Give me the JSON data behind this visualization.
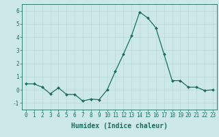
{
  "x": [
    0,
    1,
    2,
    3,
    4,
    5,
    6,
    7,
    8,
    9,
    10,
    11,
    12,
    13,
    14,
    15,
    16,
    17,
    18,
    19,
    20,
    21,
    22,
    23
  ],
  "y": [
    0.45,
    0.45,
    0.2,
    -0.3,
    0.15,
    -0.35,
    -0.35,
    -0.85,
    -0.7,
    -0.75,
    0.0,
    1.4,
    2.7,
    4.1,
    5.9,
    5.45,
    4.7,
    2.7,
    0.7,
    0.7,
    0.2,
    0.2,
    -0.05,
    0.0
  ],
  "line_color": "#1a6b5e",
  "marker": "D",
  "marker_size": 2.0,
  "bg_color": "#cce8e8",
  "grid_color": "#b8d8d8",
  "xlabel": "Humidex (Indice chaleur)",
  "ylim": [
    -1.5,
    6.5
  ],
  "xlim": [
    -0.5,
    23.5
  ],
  "yticks": [
    -1,
    0,
    1,
    2,
    3,
    4,
    5,
    6
  ],
  "xtick_labels": [
    "0",
    "1",
    "2",
    "3",
    "4",
    "5",
    "6",
    "7",
    "8",
    "9",
    "10",
    "11",
    "12",
    "13",
    "14",
    "15",
    "16",
    "17",
    "18",
    "19",
    "20",
    "21",
    "22",
    "23"
  ],
  "tick_color": "#1a6b5e",
  "label_color": "#1a6b5e",
  "spine_color": "#1a6b5e",
  "xlabel_fontsize": 7.0,
  "tick_fontsize": 5.5,
  "linewidth": 0.9
}
